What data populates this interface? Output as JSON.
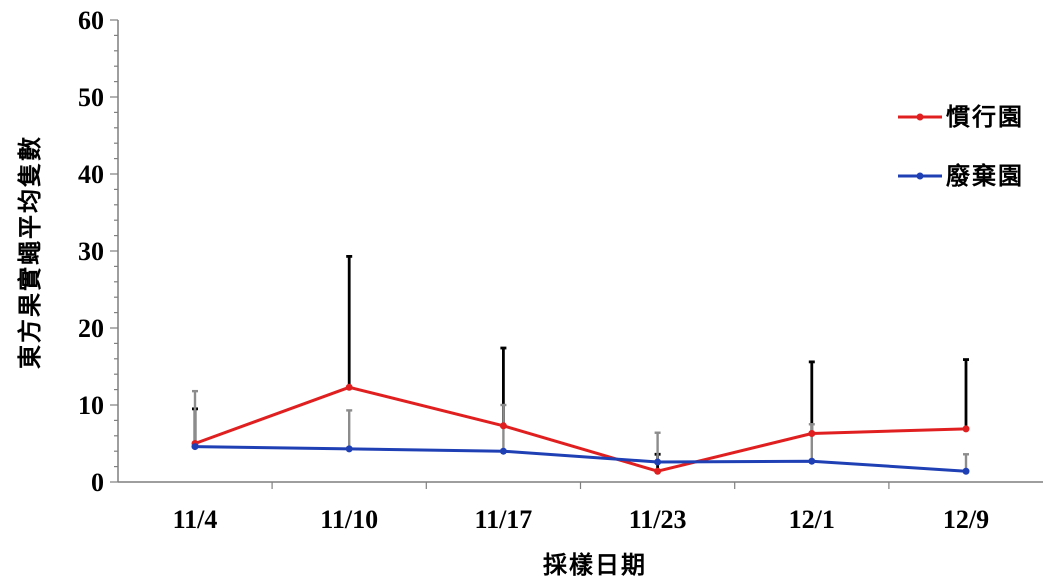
{
  "chart_data": {
    "type": "line",
    "categories": [
      "11/4",
      "11/10",
      "11/17",
      "11/23",
      "12/1",
      "12/9"
    ],
    "xlabel": "採樣日期",
    "ylabel": "東方果實蠅平均隻數",
    "ylim": [
      0,
      60
    ],
    "yticks": [
      0,
      10,
      20,
      30,
      40,
      50,
      60
    ],
    "grid": false,
    "legend_position": "right",
    "series": [
      {
        "name": "慣行園",
        "color": "#e02020",
        "errorbar_color": "#000000",
        "values": [
          5.0,
          12.3,
          7.3,
          1.4,
          6.3,
          6.9
        ],
        "errors": [
          4.5,
          17.0,
          10.1,
          2.2,
          9.3,
          9.0
        ]
      },
      {
        "name": "廢棄園",
        "color": "#1f3fb5",
        "errorbar_color": "#8c8c8c",
        "values": [
          4.6,
          4.3,
          4.0,
          2.6,
          2.7,
          1.4
        ],
        "errors": [
          7.2,
          5.0,
          6.0,
          3.8,
          4.8,
          2.2
        ]
      }
    ]
  }
}
